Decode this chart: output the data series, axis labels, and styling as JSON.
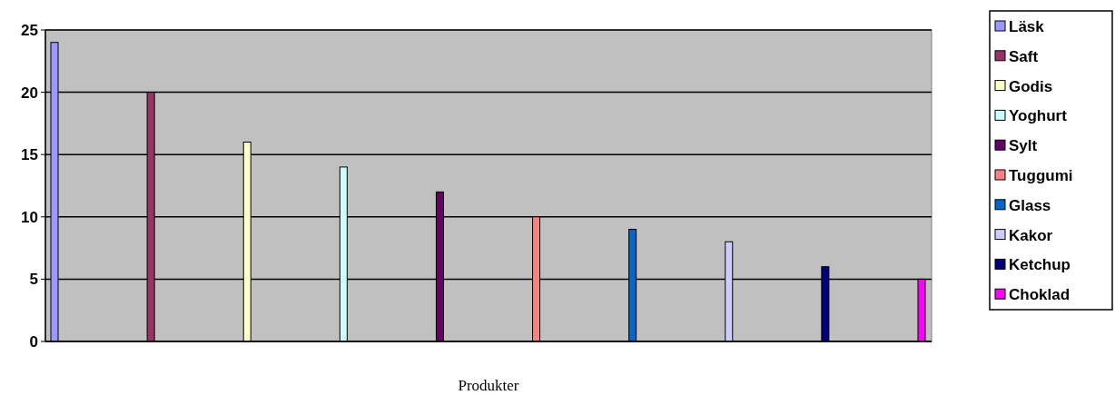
{
  "chart_data": {
    "type": "bar",
    "xlabel": "Produkter",
    "categories": [
      null
    ],
    "series": [
      {
        "name": "Läsk",
        "color": "#9999ff",
        "values": [
          24
        ]
      },
      {
        "name": "Saft",
        "color": "#993366",
        "values": [
          20
        ]
      },
      {
        "name": "Godis",
        "color": "#ffffcc",
        "values": [
          16
        ]
      },
      {
        "name": "Yoghurt",
        "color": "#ccffff",
        "values": [
          14
        ]
      },
      {
        "name": "Sylt",
        "color": "#660066",
        "values": [
          12
        ]
      },
      {
        "name": "Tuggumi",
        "color": "#ff8080",
        "values": [
          10
        ]
      },
      {
        "name": "Glass",
        "color": "#0066cc",
        "values": [
          9
        ]
      },
      {
        "name": "Kakor",
        "color": "#ccccff",
        "values": [
          8
        ]
      },
      {
        "name": "Ketchup",
        "color": "#000080",
        "values": [
          6
        ]
      },
      {
        "name": "Choklad",
        "color": "#ff00ff",
        "values": [
          5
        ]
      }
    ],
    "ylim": [
      0,
      25
    ],
    "yticks": [
      0,
      5,
      10,
      15,
      20,
      25
    ],
    "grid": "y",
    "legend": "right"
  }
}
